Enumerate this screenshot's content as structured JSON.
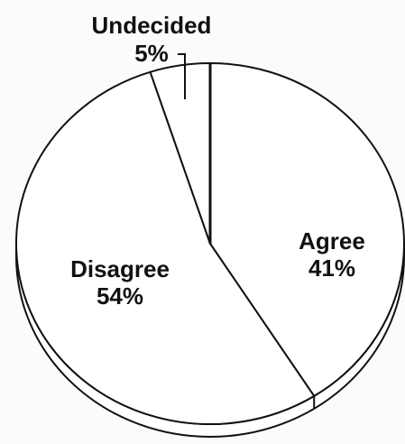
{
  "chart_data": {
    "type": "pie",
    "style": "3d-tilted",
    "slices": [
      {
        "label": "Agree",
        "value_label": "41%",
        "value": 41
      },
      {
        "label": "Disagree",
        "value_label": "54%",
        "value": 54
      },
      {
        "label": "Undecided",
        "value_label": "5%",
        "value": 5
      }
    ],
    "colors": {
      "background": "#fbfbf9",
      "slice_fill": "#ffffff",
      "outline": "#111111"
    }
  }
}
